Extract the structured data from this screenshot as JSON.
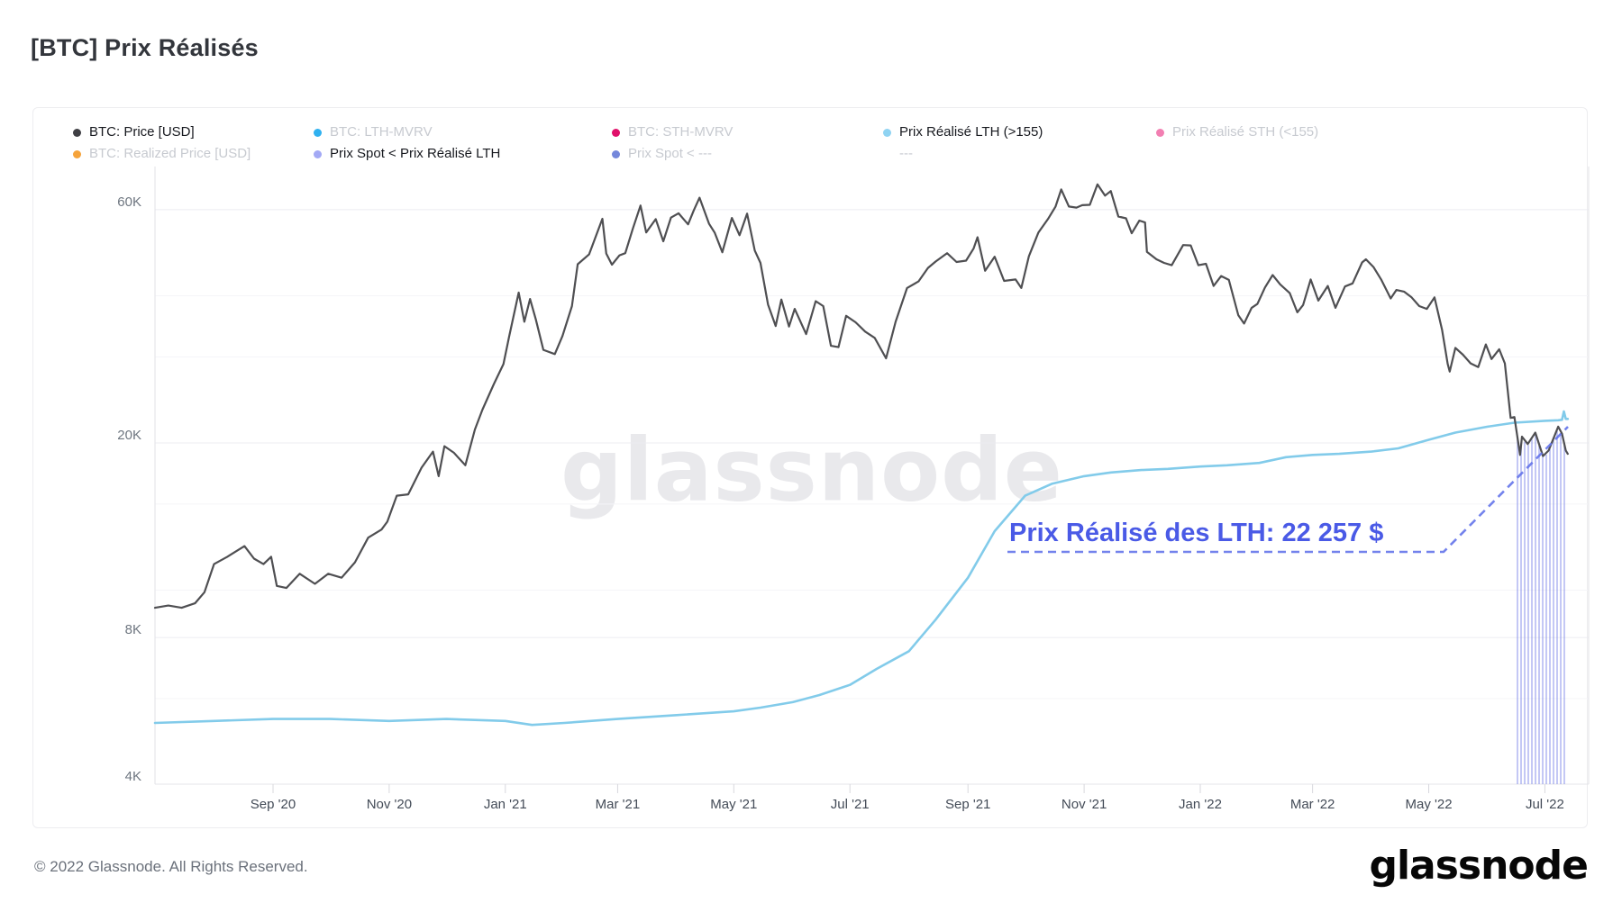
{
  "page": {
    "title": "[BTC] Prix Réalisés",
    "footer": "© 2022 Glassnode. All Rights Reserved.",
    "brand": "glassnode",
    "watermark": "glassnode"
  },
  "legend": {
    "rows": [
      [
        {
          "label": "BTC: Price [USD]",
          "dot": "#3f3f44",
          "active": true
        },
        {
          "label": "BTC: LTH-MVRV",
          "dot": "#2fb1f0",
          "active": false
        },
        {
          "label": "BTC: STH-MVRV",
          "dot": "#e0106a",
          "active": false
        },
        {
          "label": "Prix Réalisé LTH (>155)",
          "dot": "#8fd3f2",
          "active": true
        },
        {
          "label": "Prix Réalisé STH (<155)",
          "dot": "#f27fb2",
          "active": false
        }
      ],
      [
        {
          "label": "BTC: Realized Price [USD]",
          "dot": "#f5a33b",
          "active": false
        },
        {
          "label": "Prix Spot < Prix Réalisé LTH",
          "dot": "#a3a9f5",
          "active": true
        },
        {
          "label": "Prix Spot < ---",
          "dot": "#7487db",
          "active": false
        },
        {
          "label": "---",
          "dot": null,
          "active": false
        }
      ]
    ]
  },
  "chart_data": {
    "type": "line",
    "y_axis": {
      "scale": "log",
      "ticks": [
        {
          "v": 60000,
          "label": "60K"
        },
        {
          "v": 20000,
          "label": "20K"
        },
        {
          "v": 8000,
          "label": "8K"
        },
        {
          "v": 4000,
          "label": "4K"
        }
      ],
      "minor_gridlines": [
        40000,
        30000,
        15000,
        10000,
        6000
      ]
    },
    "x_axis": {
      "ticks": [
        {
          "d": "2020-09-01",
          "label": "Sep '20"
        },
        {
          "d": "2020-11-01",
          "label": "Nov '20"
        },
        {
          "d": "2021-01-01",
          "label": "Jan '21"
        },
        {
          "d": "2021-03-01",
          "label": "Mar '21"
        },
        {
          "d": "2021-05-01",
          "label": "May '21"
        },
        {
          "d": "2021-07-01",
          "label": "Jul '21"
        },
        {
          "d": "2021-09-01",
          "label": "Sep '21"
        },
        {
          "d": "2021-11-01",
          "label": "Nov '21"
        },
        {
          "d": "2022-01-01",
          "label": "Jan '22"
        },
        {
          "d": "2022-03-01",
          "label": "Mar '22"
        },
        {
          "d": "2022-05-01",
          "label": "May '22"
        },
        {
          "d": "2022-07-01",
          "label": "Jul '22"
        }
      ]
    },
    "annotation": {
      "text": "Prix Réalisé des LTH: 22 257 $",
      "value_usd": 22257,
      "color": "#4a5ae6",
      "line_color": "#6474ea"
    },
    "hatch": {
      "meaning": "Prix Spot < Prix Réalisé LTH",
      "color": "#7c86e9"
    },
    "series": [
      {
        "name": "BTC: Price [USD]",
        "color": "#4f4f52",
        "width": 2.2,
        "points": [
          [
            "2020-07-01",
            9200
          ],
          [
            "2020-07-08",
            9300
          ],
          [
            "2020-07-15",
            9200
          ],
          [
            "2020-07-22",
            9400
          ],
          [
            "2020-07-27",
            9900
          ],
          [
            "2020-08-01",
            11300
          ],
          [
            "2020-08-08",
            11700
          ],
          [
            "2020-08-17",
            12300
          ],
          [
            "2020-08-22",
            11600
          ],
          [
            "2020-08-27",
            11300
          ],
          [
            "2020-08-31",
            11700
          ],
          [
            "2020-09-03",
            10200
          ],
          [
            "2020-09-08",
            10100
          ],
          [
            "2020-09-15",
            10800
          ],
          [
            "2020-09-23",
            10300
          ],
          [
            "2020-09-30",
            10800
          ],
          [
            "2020-10-07",
            10600
          ],
          [
            "2020-10-14",
            11400
          ],
          [
            "2020-10-21",
            12800
          ],
          [
            "2020-10-28",
            13300
          ],
          [
            "2020-10-31",
            13800
          ],
          [
            "2020-11-05",
            15600
          ],
          [
            "2020-11-11",
            15700
          ],
          [
            "2020-11-18",
            17800
          ],
          [
            "2020-11-24",
            19200
          ],
          [
            "2020-11-27",
            17100
          ],
          [
            "2020-11-30",
            19700
          ],
          [
            "2020-12-05",
            19100
          ],
          [
            "2020-12-11",
            18000
          ],
          [
            "2020-12-16",
            21300
          ],
          [
            "2020-12-20",
            23400
          ],
          [
            "2020-12-26",
            26400
          ],
          [
            "2020-12-31",
            29000
          ],
          [
            "2021-01-03",
            33000
          ],
          [
            "2021-01-08",
            40600
          ],
          [
            "2021-01-11",
            35400
          ],
          [
            "2021-01-14",
            39400
          ],
          [
            "2021-01-17",
            35800
          ],
          [
            "2021-01-21",
            31000
          ],
          [
            "2021-01-27",
            30400
          ],
          [
            "2021-01-31",
            33100
          ],
          [
            "2021-02-05",
            38100
          ],
          [
            "2021-02-08",
            46400
          ],
          [
            "2021-02-14",
            48600
          ],
          [
            "2021-02-21",
            57500
          ],
          [
            "2021-02-23",
            48800
          ],
          [
            "2021-02-26",
            46300
          ],
          [
            "2021-03-02",
            48400
          ],
          [
            "2021-03-05",
            48900
          ],
          [
            "2021-03-09",
            54900
          ],
          [
            "2021-03-13",
            61200
          ],
          [
            "2021-03-16",
            53900
          ],
          [
            "2021-03-21",
            57400
          ],
          [
            "2021-03-25",
            51700
          ],
          [
            "2021-03-29",
            57800
          ],
          [
            "2021-04-02",
            59000
          ],
          [
            "2021-04-07",
            56000
          ],
          [
            "2021-04-10",
            59800
          ],
          [
            "2021-04-13",
            63500
          ],
          [
            "2021-04-18",
            56200
          ],
          [
            "2021-04-21",
            53800
          ],
          [
            "2021-04-25",
            49100
          ],
          [
            "2021-04-30",
            57700
          ],
          [
            "2021-05-04",
            53200
          ],
          [
            "2021-05-08",
            58900
          ],
          [
            "2021-05-12",
            49500
          ],
          [
            "2021-05-15",
            46700
          ],
          [
            "2021-05-19",
            38400
          ],
          [
            "2021-05-23",
            34700
          ],
          [
            "2021-05-26",
            39300
          ],
          [
            "2021-05-30",
            34600
          ],
          [
            "2021-06-02",
            37600
          ],
          [
            "2021-06-08",
            33400
          ],
          [
            "2021-06-13",
            39000
          ],
          [
            "2021-06-17",
            38100
          ],
          [
            "2021-06-21",
            31600
          ],
          [
            "2021-06-25",
            31400
          ],
          [
            "2021-06-29",
            36400
          ],
          [
            "2021-07-04",
            35300
          ],
          [
            "2021-07-09",
            33800
          ],
          [
            "2021-07-14",
            32800
          ],
          [
            "2021-07-20",
            29800
          ],
          [
            "2021-07-25",
            35400
          ],
          [
            "2021-07-31",
            41500
          ],
          [
            "2021-08-06",
            42800
          ],
          [
            "2021-08-11",
            45600
          ],
          [
            "2021-08-15",
            47000
          ],
          [
            "2021-08-21",
            48900
          ],
          [
            "2021-08-26",
            46900
          ],
          [
            "2021-08-31",
            47200
          ],
          [
            "2021-09-04",
            50000
          ],
          [
            "2021-09-06",
            52700
          ],
          [
            "2021-09-10",
            45000
          ],
          [
            "2021-09-15",
            48100
          ],
          [
            "2021-09-20",
            42900
          ],
          [
            "2021-09-26",
            43200
          ],
          [
            "2021-09-29",
            41500
          ],
          [
            "2021-10-03",
            48200
          ],
          [
            "2021-10-08",
            53900
          ],
          [
            "2021-10-13",
            57400
          ],
          [
            "2021-10-17",
            60900
          ],
          [
            "2021-10-20",
            66000
          ],
          [
            "2021-10-24",
            60900
          ],
          [
            "2021-10-28",
            60600
          ],
          [
            "2021-10-31",
            61300
          ],
          [
            "2021-11-04",
            61400
          ],
          [
            "2021-11-08",
            67600
          ],
          [
            "2021-11-12",
            64100
          ],
          [
            "2021-11-15",
            65500
          ],
          [
            "2021-11-19",
            58100
          ],
          [
            "2021-11-23",
            57600
          ],
          [
            "2021-11-26",
            53700
          ],
          [
            "2021-11-30",
            57000
          ],
          [
            "2021-12-03",
            56500
          ],
          [
            "2021-12-04",
            49200
          ],
          [
            "2021-12-09",
            47500
          ],
          [
            "2021-12-13",
            46700
          ],
          [
            "2021-12-17",
            46200
          ],
          [
            "2021-12-23",
            50800
          ],
          [
            "2021-12-27",
            50700
          ],
          [
            "2021-12-31",
            46200
          ],
          [
            "2022-01-04",
            46500
          ],
          [
            "2022-01-08",
            41900
          ],
          [
            "2022-01-12",
            43900
          ],
          [
            "2022-01-16",
            43100
          ],
          [
            "2022-01-21",
            36500
          ],
          [
            "2022-01-24",
            35100
          ],
          [
            "2022-01-28",
            37800
          ],
          [
            "2022-01-31",
            38500
          ],
          [
            "2022-02-04",
            41600
          ],
          [
            "2022-02-08",
            44100
          ],
          [
            "2022-02-12",
            42200
          ],
          [
            "2022-02-17",
            40500
          ],
          [
            "2022-02-21",
            37000
          ],
          [
            "2022-02-24",
            38300
          ],
          [
            "2022-02-28",
            43200
          ],
          [
            "2022-03-04",
            39100
          ],
          [
            "2022-03-09",
            41900
          ],
          [
            "2022-03-13",
            37800
          ],
          [
            "2022-03-18",
            41800
          ],
          [
            "2022-03-22",
            42400
          ],
          [
            "2022-03-27",
            46800
          ],
          [
            "2022-03-29",
            47500
          ],
          [
            "2022-04-02",
            45800
          ],
          [
            "2022-04-06",
            43200
          ],
          [
            "2022-04-11",
            39500
          ],
          [
            "2022-04-14",
            41100
          ],
          [
            "2022-04-18",
            40800
          ],
          [
            "2022-04-22",
            39700
          ],
          [
            "2022-04-26",
            38100
          ],
          [
            "2022-04-30",
            37600
          ],
          [
            "2022-05-04",
            39700
          ],
          [
            "2022-05-08",
            34100
          ],
          [
            "2022-05-11",
            29000
          ],
          [
            "2022-05-12",
            28000
          ],
          [
            "2022-05-15",
            31300
          ],
          [
            "2022-05-19",
            30300
          ],
          [
            "2022-05-23",
            29100
          ],
          [
            "2022-05-27",
            28600
          ],
          [
            "2022-05-31",
            31800
          ],
          [
            "2022-06-03",
            29700
          ],
          [
            "2022-06-07",
            31100
          ],
          [
            "2022-06-10",
            29100
          ],
          [
            "2022-06-13",
            22500
          ],
          [
            "2022-06-15",
            22600
          ],
          [
            "2022-06-18",
            18900
          ],
          [
            "2022-06-19",
            20600
          ],
          [
            "2022-06-22",
            19900
          ],
          [
            "2022-06-26",
            21000
          ],
          [
            "2022-06-30",
            18800
          ],
          [
            "2022-07-03",
            19300
          ],
          [
            "2022-07-05",
            20200
          ],
          [
            "2022-07-08",
            21600
          ],
          [
            "2022-07-10",
            20900
          ],
          [
            "2022-07-12",
            19300
          ],
          [
            "2022-07-13",
            19000
          ]
        ]
      },
      {
        "name": "Prix Réalisé LTH (>155)",
        "color": "#82cbea",
        "width": 2.6,
        "points": [
          [
            "2020-07-01",
            5350
          ],
          [
            "2020-08-01",
            5400
          ],
          [
            "2020-09-01",
            5450
          ],
          [
            "2020-10-01",
            5450
          ],
          [
            "2020-11-01",
            5400
          ],
          [
            "2020-12-01",
            5450
          ],
          [
            "2021-01-01",
            5400
          ],
          [
            "2021-01-15",
            5300
          ],
          [
            "2021-02-01",
            5350
          ],
          [
            "2021-03-01",
            5450
          ],
          [
            "2021-04-01",
            5550
          ],
          [
            "2021-05-01",
            5650
          ],
          [
            "2021-05-15",
            5750
          ],
          [
            "2021-06-01",
            5900
          ],
          [
            "2021-06-15",
            6100
          ],
          [
            "2021-07-01",
            6400
          ],
          [
            "2021-07-15",
            6900
          ],
          [
            "2021-08-01",
            7500
          ],
          [
            "2021-08-15",
            8700
          ],
          [
            "2021-09-01",
            10600
          ],
          [
            "2021-09-15",
            13200
          ],
          [
            "2021-10-01",
            15600
          ],
          [
            "2021-10-15",
            16500
          ],
          [
            "2021-11-01",
            17100
          ],
          [
            "2021-11-15",
            17400
          ],
          [
            "2021-12-01",
            17600
          ],
          [
            "2021-12-15",
            17700
          ],
          [
            "2022-01-01",
            17900
          ],
          [
            "2022-01-15",
            18000
          ],
          [
            "2022-02-01",
            18200
          ],
          [
            "2022-02-15",
            18700
          ],
          [
            "2022-03-01",
            18900
          ],
          [
            "2022-03-15",
            19000
          ],
          [
            "2022-04-01",
            19200
          ],
          [
            "2022-04-15",
            19500
          ],
          [
            "2022-05-01",
            20300
          ],
          [
            "2022-05-15",
            21000
          ],
          [
            "2022-06-01",
            21600
          ],
          [
            "2022-06-15",
            22000
          ],
          [
            "2022-07-01",
            22200
          ],
          [
            "2022-07-08",
            22257
          ],
          [
            "2022-07-10",
            22300
          ],
          [
            "2022-07-11",
            23200
          ],
          [
            "2022-07-12",
            22400
          ],
          [
            "2022-07-13",
            22400
          ]
        ]
      }
    ]
  }
}
